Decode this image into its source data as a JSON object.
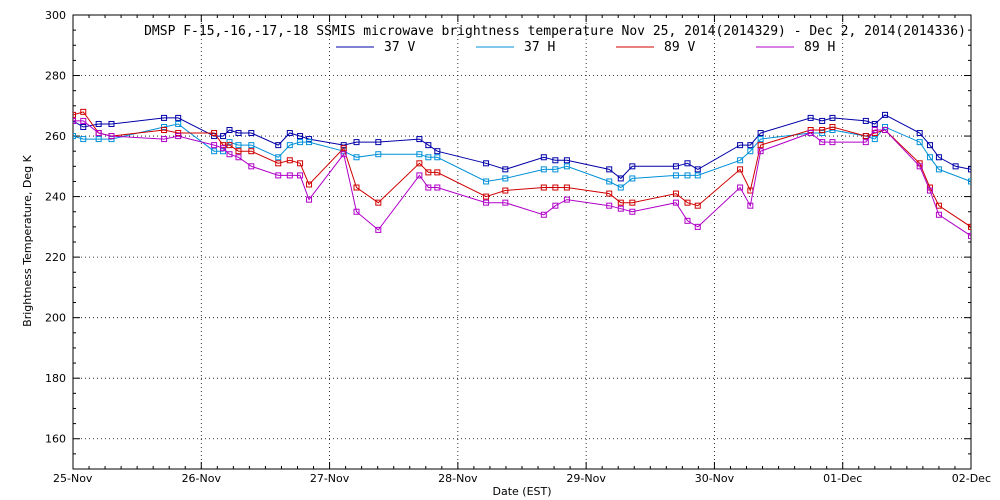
{
  "chart_data": {
    "type": "line",
    "title": "DMSP F-15,-16,-17,-18 SSMIS microwave brightness temperature Nov 25, 2014(2014329) - Dec  2, 2014(2014336)",
    "xlabel": "Date (EST)",
    "ylabel": "Brightness Temperature, Deg K",
    "xlim": [
      0,
      7
    ],
    "ylim": [
      150,
      300
    ],
    "yticks": [
      160,
      180,
      200,
      220,
      240,
      260,
      280,
      300
    ],
    "x_tick_labels": [
      "25-Nov",
      "26-Nov",
      "27-Nov",
      "28-Nov",
      "29-Nov",
      "30-Nov",
      "01-Dec",
      "02-Dec"
    ],
    "grid": true,
    "legend_position": "top",
    "series": [
      {
        "name": "37 V",
        "color": "#0000a8",
        "points": [
          [
            0.0,
            265
          ],
          [
            0.08,
            263
          ],
          [
            0.2,
            264
          ],
          [
            0.3,
            264
          ],
          [
            0.71,
            266
          ],
          [
            0.82,
            266
          ],
          [
            1.1,
            260
          ],
          [
            1.17,
            260
          ],
          [
            1.22,
            262
          ],
          [
            1.29,
            261
          ],
          [
            1.39,
            261
          ],
          [
            1.6,
            257
          ],
          [
            1.69,
            261
          ],
          [
            1.77,
            260
          ],
          [
            1.84,
            259
          ],
          [
            2.11,
            257
          ],
          [
            2.21,
            258
          ],
          [
            2.38,
            258
          ],
          [
            2.7,
            259
          ],
          [
            2.77,
            257
          ],
          [
            2.84,
            255
          ],
          [
            3.22,
            251
          ],
          [
            3.37,
            249
          ],
          [
            3.67,
            253
          ],
          [
            3.76,
            252
          ],
          [
            3.85,
            252
          ],
          [
            4.18,
            249
          ],
          [
            4.27,
            246
          ],
          [
            4.36,
            250
          ],
          [
            4.7,
            250
          ],
          [
            4.79,
            251
          ],
          [
            4.87,
            249
          ],
          [
            5.2,
            257
          ],
          [
            5.28,
            257
          ],
          [
            5.36,
            261
          ],
          [
            5.75,
            266
          ],
          [
            5.84,
            265
          ],
          [
            5.92,
            266
          ],
          [
            6.18,
            265
          ],
          [
            6.25,
            264
          ],
          [
            6.33,
            267
          ],
          [
            6.6,
            261
          ],
          [
            6.68,
            257
          ],
          [
            6.75,
            253
          ],
          [
            6.88,
            250
          ],
          [
            7.0,
            249
          ]
        ]
      },
      {
        "name": "37 H",
        "color": "#0090d8",
        "points": [
          [
            0.0,
            260
          ],
          [
            0.08,
            259
          ],
          [
            0.2,
            259
          ],
          [
            0.3,
            259
          ],
          [
            0.71,
            263
          ],
          [
            0.82,
            264
          ],
          [
            1.1,
            255
          ],
          [
            1.17,
            255
          ],
          [
            1.22,
            258
          ],
          [
            1.29,
            257
          ],
          [
            1.39,
            257
          ],
          [
            1.6,
            253
          ],
          [
            1.69,
            257
          ],
          [
            1.77,
            258
          ],
          [
            1.84,
            258
          ],
          [
            2.11,
            255
          ],
          [
            2.21,
            253
          ],
          [
            2.38,
            254
          ],
          [
            2.7,
            254
          ],
          [
            2.77,
            253
          ],
          [
            2.84,
            253
          ],
          [
            3.22,
            245
          ],
          [
            3.37,
            246
          ],
          [
            3.67,
            249
          ],
          [
            3.76,
            249
          ],
          [
            3.85,
            250
          ],
          [
            4.18,
            245
          ],
          [
            4.27,
            243
          ],
          [
            4.36,
            246
          ],
          [
            4.7,
            247
          ],
          [
            4.79,
            247
          ],
          [
            4.87,
            247
          ],
          [
            5.2,
            252
          ],
          [
            5.28,
            255
          ],
          [
            5.36,
            259
          ],
          [
            5.75,
            261
          ],
          [
            5.84,
            261
          ],
          [
            5.92,
            262
          ],
          [
            6.18,
            260
          ],
          [
            6.25,
            259
          ],
          [
            6.33,
            263
          ],
          [
            6.6,
            258
          ],
          [
            6.68,
            253
          ],
          [
            6.75,
            249
          ],
          [
            7.0,
            245
          ]
        ]
      },
      {
        "name": "89 V",
        "color": "#d00000",
        "points": [
          [
            0.0,
            267
          ],
          [
            0.08,
            268
          ],
          [
            0.2,
            261
          ],
          [
            0.3,
            260
          ],
          [
            0.71,
            262
          ],
          [
            0.82,
            261
          ],
          [
            1.1,
            261
          ],
          [
            1.17,
            257
          ],
          [
            1.22,
            257
          ],
          [
            1.29,
            255
          ],
          [
            1.39,
            255
          ],
          [
            1.6,
            251
          ],
          [
            1.69,
            252
          ],
          [
            1.77,
            251
          ],
          [
            1.84,
            244
          ],
          [
            2.11,
            256
          ],
          [
            2.21,
            243
          ],
          [
            2.38,
            238
          ],
          [
            2.7,
            251
          ],
          [
            2.77,
            248
          ],
          [
            2.84,
            248
          ],
          [
            3.22,
            240
          ],
          [
            3.37,
            242
          ],
          [
            3.67,
            243
          ],
          [
            3.76,
            243
          ],
          [
            3.85,
            243
          ],
          [
            4.18,
            241
          ],
          [
            4.27,
            238
          ],
          [
            4.36,
            238
          ],
          [
            4.7,
            241
          ],
          [
            4.79,
            238
          ],
          [
            4.87,
            237
          ],
          [
            5.2,
            249
          ],
          [
            5.28,
            242
          ],
          [
            5.36,
            257
          ],
          [
            5.75,
            262
          ],
          [
            5.84,
            262
          ],
          [
            5.92,
            263
          ],
          [
            6.18,
            260
          ],
          [
            6.25,
            261
          ],
          [
            6.33,
            262
          ],
          [
            6.6,
            251
          ],
          [
            6.68,
            243
          ],
          [
            6.75,
            237
          ],
          [
            7.0,
            230
          ]
        ]
      },
      {
        "name": "89 H",
        "color": "#b000c8",
        "points": [
          [
            0.0,
            265
          ],
          [
            0.08,
            265
          ],
          [
            0.2,
            261
          ],
          [
            0.3,
            260
          ],
          [
            0.71,
            259
          ],
          [
            0.82,
            260
          ],
          [
            1.1,
            257
          ],
          [
            1.17,
            256
          ],
          [
            1.22,
            254
          ],
          [
            1.29,
            253
          ],
          [
            1.39,
            250
          ],
          [
            1.6,
            247
          ],
          [
            1.69,
            247
          ],
          [
            1.77,
            247
          ],
          [
            1.84,
            239
          ],
          [
            2.11,
            254
          ],
          [
            2.21,
            235
          ],
          [
            2.38,
            229
          ],
          [
            2.7,
            247
          ],
          [
            2.77,
            243
          ],
          [
            2.84,
            243
          ],
          [
            3.22,
            238
          ],
          [
            3.37,
            238
          ],
          [
            3.67,
            234
          ],
          [
            3.76,
            237
          ],
          [
            3.85,
            239
          ],
          [
            4.18,
            237
          ],
          [
            4.27,
            236
          ],
          [
            4.36,
            235
          ],
          [
            4.7,
            238
          ],
          [
            4.79,
            232
          ],
          [
            4.87,
            230
          ],
          [
            5.2,
            243
          ],
          [
            5.28,
            237
          ],
          [
            5.36,
            255
          ],
          [
            5.75,
            261
          ],
          [
            5.84,
            258
          ],
          [
            5.92,
            258
          ],
          [
            6.18,
            258
          ],
          [
            6.25,
            262
          ],
          [
            6.33,
            262
          ],
          [
            6.6,
            250
          ],
          [
            6.68,
            242
          ],
          [
            6.75,
            234
          ],
          [
            7.0,
            227
          ]
        ]
      }
    ]
  }
}
